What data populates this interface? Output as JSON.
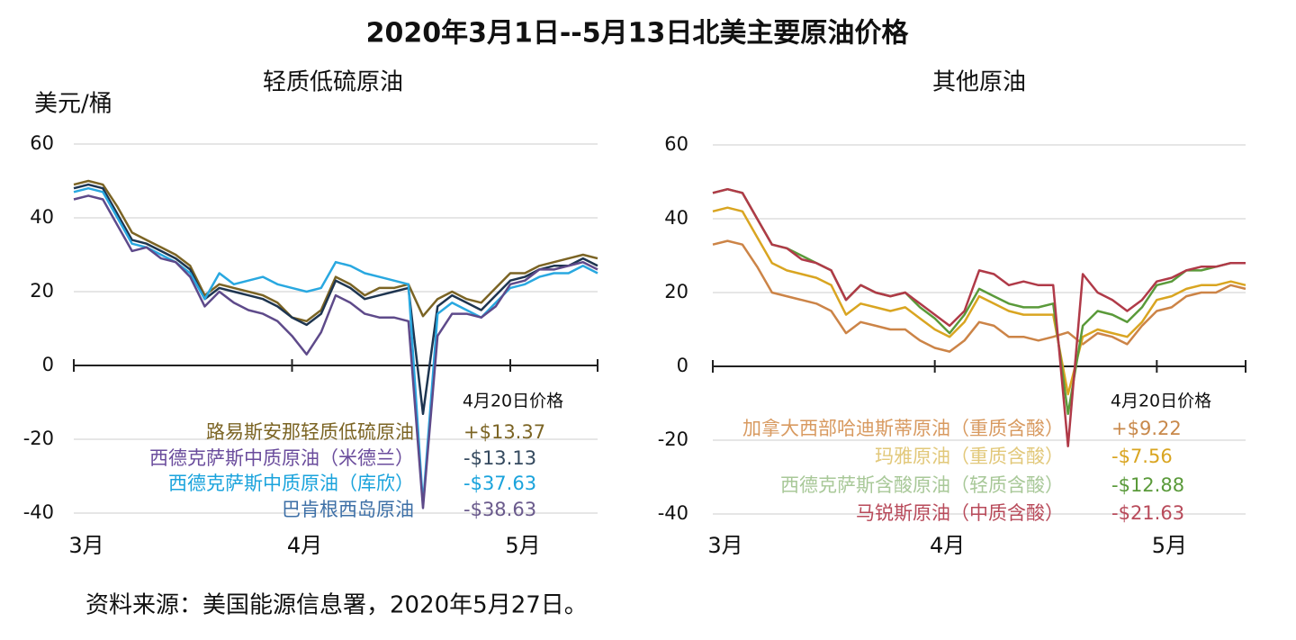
{
  "title": "2020年3月1日--5月13日北美主要原油价格",
  "source": "资料来源：美国能源信息署，2020年5月27日。",
  "chart_data": [
    {
      "type": "line",
      "title": "轻质低硫原油",
      "y_label": "美元/桶",
      "annotation": "4月20日价格",
      "categories": [
        "3月",
        null,
        null,
        null,
        null,
        null,
        null,
        null,
        null,
        null,
        null,
        null,
        null,
        null,
        null,
        "4月",
        null,
        null,
        null,
        null,
        null,
        null,
        null,
        null,
        null,
        null,
        null,
        null,
        null,
        null,
        "5月",
        null,
        null,
        null,
        null,
        null,
        null
      ],
      "ylim": [
        -40,
        60
      ],
      "yticks": [
        60,
        40,
        20,
        0,
        -20,
        -40
      ],
      "grid": true,
      "series": [
        {
          "name": "路易斯安那轻质低硫原油",
          "color": "#7b6424",
          "label_color": "#7b6424",
          "value_color": "#7b6424",
          "values": [
            49,
            50,
            49,
            43,
            36,
            34,
            32,
            30,
            27,
            19,
            22,
            21,
            20,
            19,
            17,
            13,
            12,
            15,
            24,
            22,
            19,
            21,
            21,
            22,
            13.37,
            18,
            20,
            18,
            17,
            21,
            25,
            25,
            27,
            28,
            29,
            30,
            29
          ],
          "value_labels": [
            null,
            null,
            null,
            null,
            null,
            null,
            null,
            null,
            null,
            null,
            null,
            null,
            null,
            null,
            null,
            null,
            null,
            null,
            null,
            null,
            null,
            null,
            null,
            null,
            "+$13.37",
            null,
            null,
            null,
            null,
            null,
            null,
            null,
            null,
            null,
            null,
            null,
            null
          ]
        },
        {
          "name": "西德克萨斯中质原油（米德兰）",
          "color": "#1e3550",
          "label_color": "#6a4c9c",
          "value_color": "#34495e",
          "values": [
            48,
            49,
            48,
            41,
            34,
            33,
            31,
            29,
            26,
            18,
            21,
            20,
            19,
            18,
            16,
            13,
            11,
            14,
            23,
            21,
            18,
            19,
            20,
            21,
            -13.13,
            16,
            19,
            17,
            15,
            19,
            23,
            24,
            26,
            27,
            27,
            29,
            27
          ],
          "value_labels": [
            null,
            null,
            null,
            null,
            null,
            null,
            null,
            null,
            null,
            null,
            null,
            null,
            null,
            null,
            null,
            null,
            null,
            null,
            null,
            null,
            null,
            null,
            null,
            null,
            "-$13.13",
            null,
            null,
            null,
            null,
            null,
            null,
            null,
            null,
            null,
            null,
            null,
            null
          ]
        },
        {
          "name": "西德克萨斯中质原油（库欣）",
          "color": "#29a8e0",
          "label_color": "#1aa3dc",
          "value_color": "#1aa3dc",
          "values": [
            47,
            48,
            47,
            40,
            33,
            32,
            30,
            28,
            25,
            18,
            25,
            22,
            23,
            24,
            22,
            21,
            20,
            21,
            28,
            27,
            25,
            24,
            23,
            22,
            -37.63,
            14,
            17,
            15,
            13,
            17,
            21,
            22,
            24,
            25,
            25,
            27,
            25
          ],
          "value_labels": [
            null,
            null,
            null,
            null,
            null,
            null,
            null,
            null,
            null,
            null,
            null,
            null,
            null,
            null,
            null,
            null,
            null,
            null,
            null,
            null,
            null,
            null,
            null,
            null,
            "-$37.63",
            null,
            null,
            null,
            null,
            null,
            null,
            null,
            null,
            null,
            null,
            null,
            null
          ]
        },
        {
          "name": "巴肯根西岛原油",
          "color": "#5e4a8a",
          "label_color": "#3d6fa6",
          "value_color": "#6a5a8c",
          "values": [
            45,
            46,
            45,
            38,
            31,
            32,
            29,
            28,
            24,
            16,
            20,
            17,
            15,
            14,
            12,
            8,
            3,
            9,
            19,
            17,
            14,
            13,
            13,
            12,
            -38.63,
            8,
            14,
            14,
            13,
            16,
            22,
            23,
            26,
            26,
            27,
            28,
            26
          ],
          "value_labels": [
            null,
            null,
            null,
            null,
            null,
            null,
            null,
            null,
            null,
            null,
            null,
            null,
            null,
            null,
            null,
            null,
            null,
            null,
            null,
            null,
            null,
            null,
            null,
            null,
            "-$38.63",
            null,
            null,
            null,
            null,
            null,
            null,
            null,
            null,
            null,
            null,
            null,
            null
          ]
        }
      ]
    },
    {
      "type": "line",
      "title": "其他原油",
      "annotation": "4月20日价格",
      "categories": [
        "3月",
        null,
        null,
        null,
        null,
        null,
        null,
        null,
        null,
        null,
        null,
        null,
        null,
        null,
        null,
        "4月",
        null,
        null,
        null,
        null,
        null,
        null,
        null,
        null,
        null,
        null,
        null,
        null,
        null,
        null,
        "5月",
        null,
        null,
        null,
        null,
        null,
        null
      ],
      "ylim": [
        -40,
        60
      ],
      "yticks": [
        60,
        40,
        20,
        0,
        -20,
        -40
      ],
      "grid": true,
      "series": [
        {
          "name": "加拿大西部哈迪斯蒂原油（重质含酸）",
          "color": "#cc8447",
          "label_color": "#d89a60",
          "value_color": "#c8884a",
          "values": [
            33,
            34,
            33,
            27,
            20,
            19,
            18,
            17,
            15,
            9,
            12,
            11,
            10,
            10,
            7,
            5,
            4,
            7,
            12,
            11,
            8,
            8,
            7,
            8,
            9.22,
            6,
            9,
            8,
            6,
            11,
            15,
            16,
            19,
            20,
            20,
            22,
            21
          ],
          "value_labels": [
            null,
            null,
            null,
            null,
            null,
            null,
            null,
            null,
            null,
            null,
            null,
            null,
            null,
            null,
            null,
            null,
            null,
            null,
            null,
            null,
            null,
            null,
            null,
            null,
            "+$9.22",
            null,
            null,
            null,
            null,
            null,
            null,
            null,
            null,
            null,
            null,
            null,
            null
          ]
        },
        {
          "name": "玛雅原油（重质含酸）",
          "color": "#d9a521",
          "label_color": "#e2c87a",
          "value_color": "#d9a521",
          "values": [
            42,
            43,
            42,
            35,
            28,
            26,
            25,
            24,
            22,
            14,
            17,
            16,
            15,
            16,
            13,
            10,
            8,
            12,
            19,
            17,
            15,
            14,
            14,
            14,
            -7.56,
            8,
            10,
            9,
            8,
            12,
            18,
            19,
            21,
            22,
            22,
            23,
            22
          ],
          "value_labels": [
            null,
            null,
            null,
            null,
            null,
            null,
            null,
            null,
            null,
            null,
            null,
            null,
            null,
            null,
            null,
            null,
            null,
            null,
            null,
            null,
            null,
            null,
            null,
            null,
            "-$7.56",
            null,
            null,
            null,
            null,
            null,
            null,
            null,
            null,
            null,
            null,
            null,
            null
          ]
        },
        {
          "name": "西德克萨斯含酸原油（轻质含酸）",
          "color": "#5a9a3a",
          "label_color": "#a8c898",
          "value_color": "#5a9a3a",
          "values": [
            47,
            48,
            47,
            40,
            33,
            32,
            30,
            28,
            26,
            18,
            22,
            20,
            19,
            20,
            16,
            13,
            9,
            14,
            21,
            19,
            17,
            16,
            16,
            17,
            -12.88,
            11,
            15,
            14,
            12,
            16,
            22,
            23,
            26,
            26,
            27,
            28,
            28
          ],
          "value_labels": [
            null,
            null,
            null,
            null,
            null,
            null,
            null,
            null,
            null,
            null,
            null,
            null,
            null,
            null,
            null,
            null,
            null,
            null,
            null,
            null,
            null,
            null,
            null,
            null,
            "-$12.88",
            null,
            null,
            null,
            null,
            null,
            null,
            null,
            null,
            null,
            null,
            null,
            null
          ]
        },
        {
          "name": "马锐斯原油（中质含酸）",
          "color": "#b03a48",
          "label_color": "#b84a5a",
          "value_color": "#b84a5a",
          "values": [
            47,
            48,
            47,
            40,
            33,
            32,
            29,
            28,
            26,
            18,
            22,
            20,
            19,
            20,
            17,
            14,
            11,
            15,
            26,
            25,
            22,
            23,
            22,
            22,
            -21.63,
            25,
            20,
            18,
            15,
            18,
            23,
            24,
            26,
            27,
            27,
            28,
            28
          ],
          "value_labels": [
            null,
            null,
            null,
            null,
            null,
            null,
            null,
            null,
            null,
            null,
            null,
            null,
            null,
            null,
            null,
            null,
            null,
            null,
            null,
            null,
            null,
            null,
            null,
            null,
            "-$21.63",
            null,
            null,
            null,
            null,
            null,
            null,
            null,
            null,
            null,
            null,
            null,
            null
          ]
        }
      ]
    }
  ]
}
